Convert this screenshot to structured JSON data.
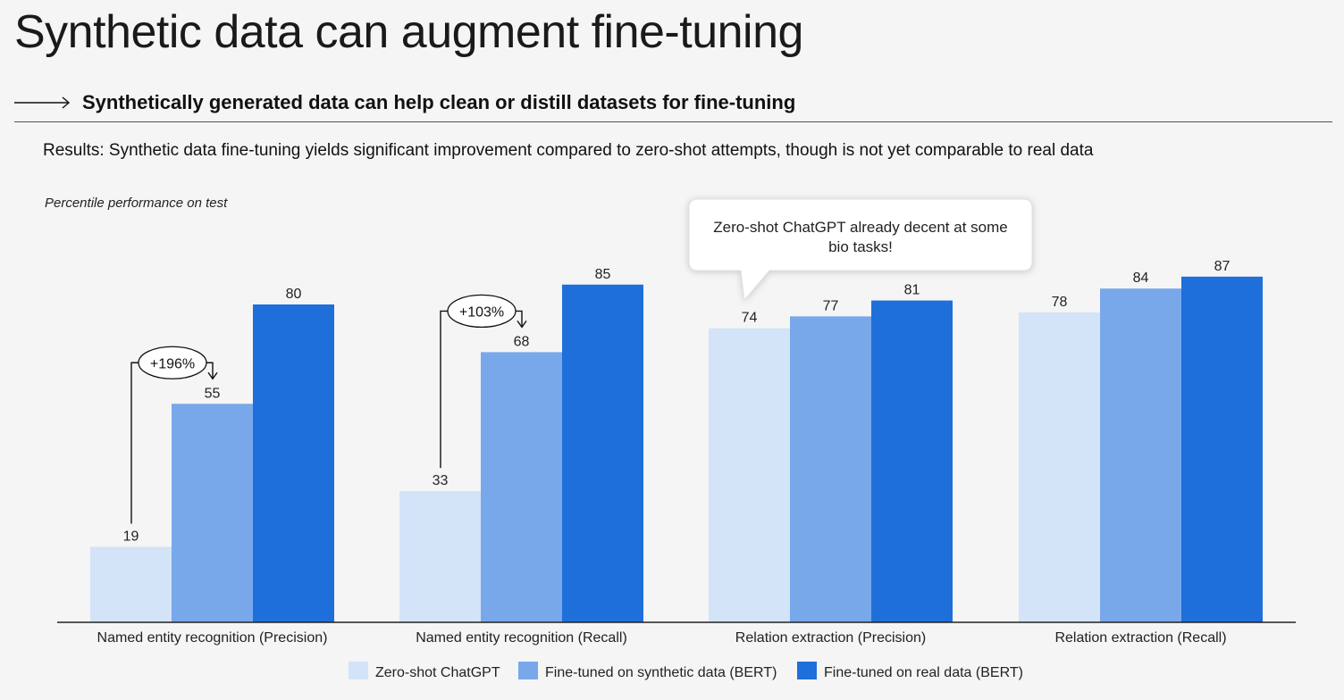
{
  "header": {
    "title": "Synthetic data can augment fine-tuning",
    "subtitle": "Synthetically generated data can help clean or distill datasets for fine-tuning",
    "results_label": "Results:",
    "results_text": " Synthetic data fine-tuning yields significant improvement compared to zero-shot attempts, though is not yet comparable to real data"
  },
  "colors": {
    "zero_shot": "#d3e3f8",
    "synthetic": "#78a8ea",
    "real": "#1f6fdb",
    "axis": "#222222"
  },
  "chart_data": {
    "type": "bar",
    "ylabel": "Percentile performance on test",
    "ylim": [
      0,
      100
    ],
    "grid": false,
    "legend_position": "bottom",
    "categories": [
      "Named entity recognition (Precision)",
      "Named entity recognition (Recall)",
      "Relation extraction (Precision)",
      "Relation extraction (Recall)"
    ],
    "series": [
      {
        "name": "Zero-shot ChatGPT",
        "values": [
          19,
          33,
          74,
          78
        ]
      },
      {
        "name": "Fine-tuned on synthetic data (BERT)",
        "values": [
          55,
          68,
          77,
          84
        ]
      },
      {
        "name": "Fine-tuned on real data (BERT)",
        "values": [
          80,
          85,
          81,
          87
        ]
      }
    ],
    "annotations": [
      {
        "text": "+196%",
        "category_index": 0,
        "from_series": 0,
        "to_series": 1
      },
      {
        "text": "+103%",
        "category_index": 1,
        "from_series": 0,
        "to_series": 1
      }
    ],
    "callout": {
      "text_line1": "Zero-shot ChatGPT already decent at some",
      "text_line2": "bio tasks!",
      "category_index": 2
    }
  }
}
